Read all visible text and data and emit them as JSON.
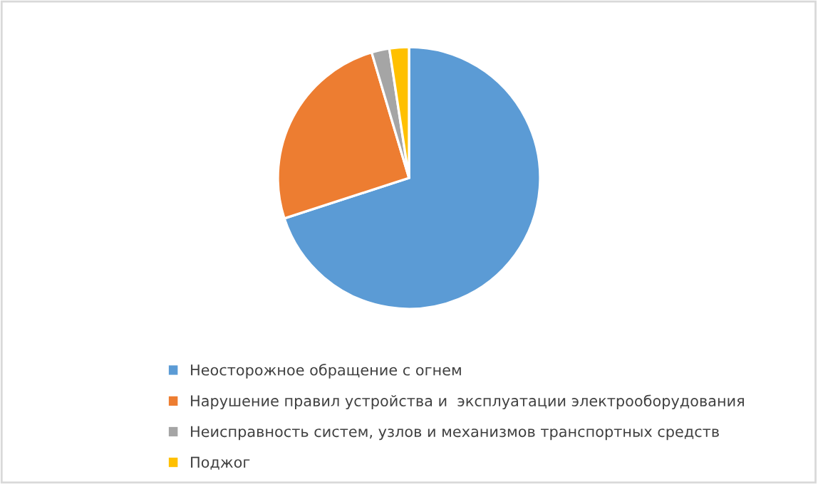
{
  "chart_data": {
    "type": "pie",
    "categories": [
      "Неосторожное обращение с огнем",
      "Нарушение правил устройства и  эксплуатации электрооборудования",
      "Неисправность систем, узлов и механизмов транспортных средств",
      "Поджог"
    ],
    "values": [
      70.0,
      25.4,
      2.2,
      2.4
    ],
    "colors": [
      "#5b9bd5",
      "#ed7d31",
      "#a5a5a5",
      "#ffc000"
    ],
    "legend": "bottom"
  }
}
